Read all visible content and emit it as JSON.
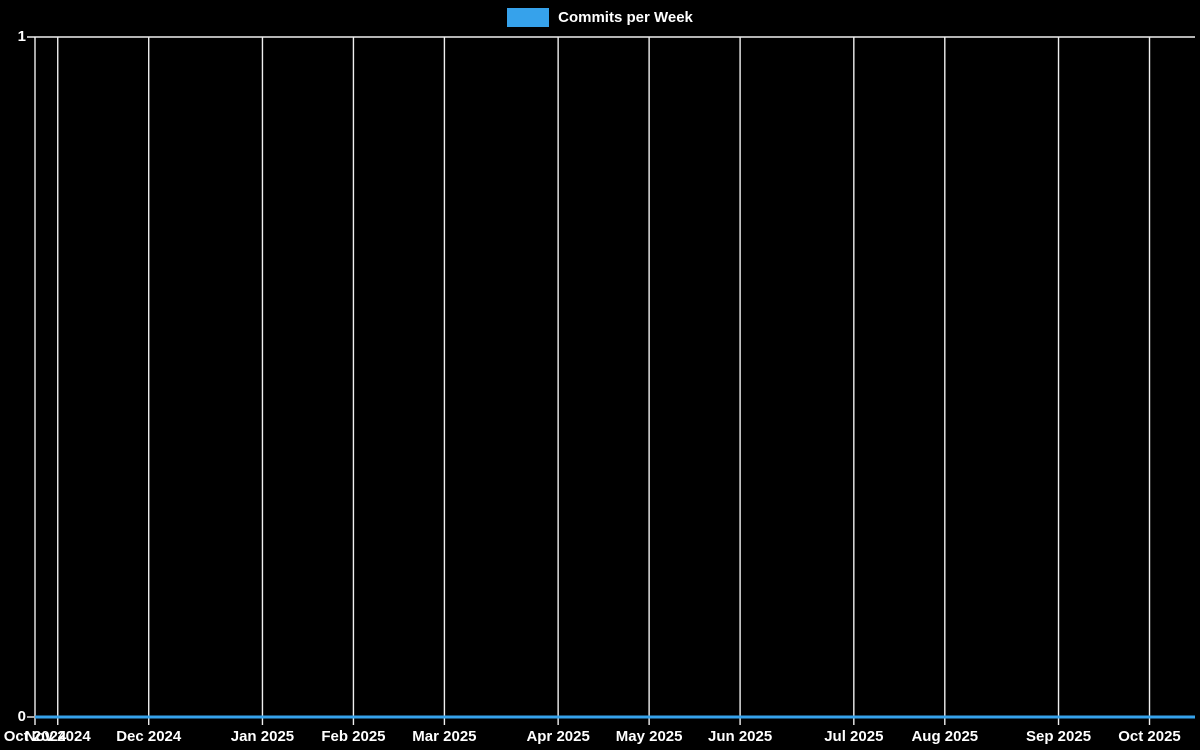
{
  "legend": {
    "label": "Commits per Week",
    "swatch_color": "#36a2eb"
  },
  "y_axis": {
    "max_label": "1",
    "min_label": "0"
  },
  "x_axis": {
    "ticks": [
      {
        "label": "Oct 2024",
        "week_index": 0
      },
      {
        "label": "Nov 2024",
        "week_index": 1
      },
      {
        "label": "Dec 2024",
        "week_index": 5
      },
      {
        "label": "Jan 2025",
        "week_index": 10
      },
      {
        "label": "Feb 2025",
        "week_index": 14
      },
      {
        "label": "Mar 2025",
        "week_index": 18
      },
      {
        "label": "Apr 2025",
        "week_index": 23
      },
      {
        "label": "May 2025",
        "week_index": 27
      },
      {
        "label": "Jun 2025",
        "week_index": 31
      },
      {
        "label": "Jul 2025",
        "week_index": 36
      },
      {
        "label": "Aug 2025",
        "week_index": 40
      },
      {
        "label": "Sep 2025",
        "week_index": 45
      },
      {
        "label": "Oct 2025",
        "week_index": 49
      }
    ]
  },
  "colors": {
    "background": "#000000",
    "grid": "#f0f0f0",
    "text": "#ffffff",
    "line": "#36a2eb"
  },
  "chart_data": {
    "type": "line",
    "title": "Commits per Week",
    "xlabel": "",
    "ylabel": "",
    "ylim": [
      0,
      1
    ],
    "yticks": [
      0,
      1
    ],
    "grid": "vertical gridlines at month ticks, horizontal line at y=1",
    "legend_position": "top-center",
    "num_points": 52,
    "x_unit": "week",
    "categories": [
      "Oct 2024",
      "Nov 2024",
      "Dec 2024",
      "Jan 2025",
      "Feb 2025",
      "Mar 2025",
      "Apr 2025",
      "May 2025",
      "Jun 2025",
      "Jul 2025",
      "Aug 2025",
      "Sep 2025",
      "Oct 2025"
    ],
    "series": [
      {
        "name": "Commits per Week",
        "color": "#36a2eb",
        "values": [
          0,
          0,
          0,
          0,
          0,
          0,
          0,
          0,
          0,
          0,
          0,
          0,
          0,
          0,
          0,
          0,
          0,
          0,
          0,
          0,
          0,
          0,
          0,
          0,
          0,
          0,
          0,
          0,
          0,
          0,
          0,
          0,
          0,
          0,
          0,
          0,
          0,
          0,
          0,
          0,
          0,
          0,
          0,
          0,
          0,
          0,
          0,
          0,
          0,
          0,
          0,
          0
        ]
      }
    ]
  }
}
